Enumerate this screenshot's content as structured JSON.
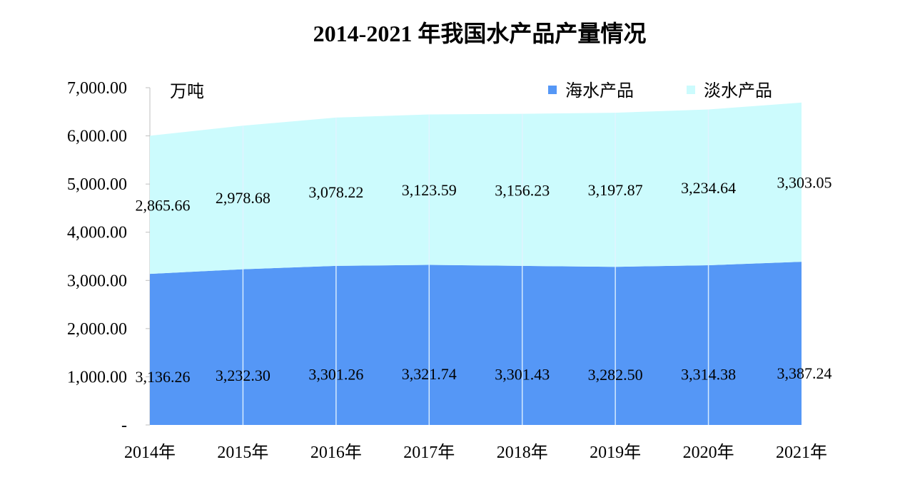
{
  "chart_data": {
    "type": "area",
    "stacked": true,
    "title": "2014-2021 年我国水产品产量情况",
    "unit_label": "万吨",
    "categories": [
      "2014年",
      "2015年",
      "2016年",
      "2017年",
      "2018年",
      "2019年",
      "2020年",
      "2021年"
    ],
    "series": [
      {
        "name": "海水产品",
        "color": "#5597f6",
        "values": [
          3136.26,
          3232.3,
          3301.26,
          3321.74,
          3301.43,
          3282.5,
          3314.38,
          3387.24
        ],
        "labels": [
          "3,136.26",
          "3,232.30",
          "3,301.26",
          "3,321.74",
          "3,301.43",
          "3,282.50",
          "3,314.38",
          "3,387.24"
        ]
      },
      {
        "name": "淡水产品",
        "color": "#ccfbfd",
        "values": [
          2865.66,
          2978.68,
          3078.22,
          3123.59,
          3156.23,
          3197.87,
          3234.64,
          3303.05
        ],
        "labels": [
          "2,865.66",
          "2,978.68",
          "3,078.22",
          "3,123.59",
          "3,156.23",
          "3,197.87",
          "3,234.64",
          "3,303.05"
        ]
      }
    ],
    "yticks": [
      "-",
      "1,000.00",
      "2,000.00",
      "3,000.00",
      "4,000.00",
      "5,000.00",
      "6,000.00",
      "7,000.00"
    ],
    "ylim": [
      0,
      7000
    ],
    "legend_position": "top-right",
    "grid": false
  }
}
